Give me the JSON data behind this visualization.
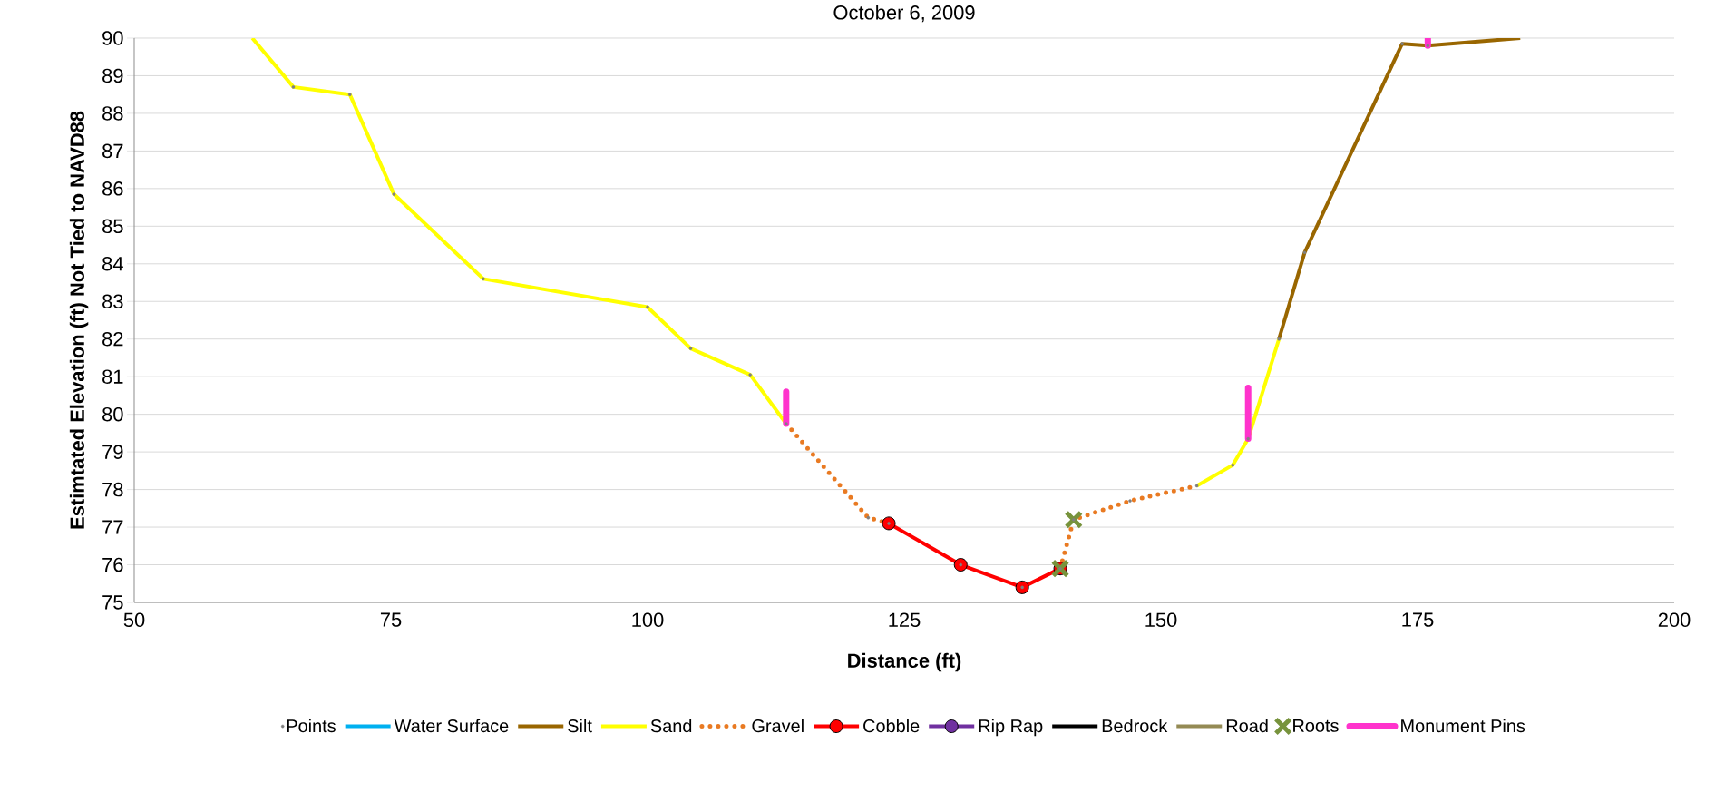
{
  "chart_data": {
    "type": "line",
    "title": "October 6, 2009",
    "xlabel": "Distance (ft)",
    "ylabel": "Estimtated Elevation (ft) Not Tied to NAVD88",
    "xlim": [
      50,
      200
    ],
    "xticks": [
      50,
      75,
      100,
      125,
      150,
      175,
      200
    ],
    "ylim": [
      75,
      90
    ],
    "yticks": [
      75,
      76,
      77,
      78,
      79,
      80,
      81,
      82,
      83,
      84,
      85,
      86,
      87,
      88,
      89,
      90
    ],
    "grid": "y",
    "legend": "bottom",
    "series": [
      {
        "name": "Points",
        "type": "scatter",
        "marker": "circle",
        "color": "#808080",
        "x": [
          65.5,
          71,
          75.3,
          84,
          100,
          104.2,
          110,
          113.5,
          121.5,
          123.5,
          130.5,
          136.5,
          140.2,
          141.5,
          147,
          153.5,
          157,
          158.5,
          161.5,
          164,
          173.5,
          176
        ],
        "values": [
          88.7,
          88.5,
          85.85,
          83.6,
          82.85,
          81.75,
          81.05,
          79.75,
          77.25,
          77.1,
          76.0,
          75.4,
          75.9,
          77.2,
          77.7,
          78.1,
          78.65,
          79.35,
          82.0,
          84.3,
          89.85,
          89.8
        ]
      },
      {
        "name": "Water Surface",
        "color": "#00b0f0",
        "marker": "none",
        "line_style": "solid"
      },
      {
        "name": "Silt",
        "color": "#996600",
        "marker": "none",
        "line_style": "solid",
        "x": [
          161.5,
          164,
          173.5,
          176,
          185
        ],
        "values": [
          82.0,
          84.3,
          89.85,
          89.8,
          90.0
        ]
      },
      {
        "name": "Sand",
        "color": "#ffff00",
        "marker": "none",
        "line_style": "solid",
        "x": [
          61.5,
          65.5,
          71,
          75.3,
          84,
          100,
          104.2,
          110,
          113.5,
          null,
          153.5,
          157,
          158.5,
          161.5
        ],
        "values": [
          90.0,
          88.7,
          88.5,
          85.85,
          83.6,
          82.85,
          81.75,
          81.05,
          79.75,
          null,
          78.1,
          78.65,
          79.35,
          82.0
        ]
      },
      {
        "name": "Gravel",
        "color": "#e97a22",
        "marker": "none",
        "line_style": "dotted",
        "x": [
          113.5,
          121.5,
          123.5,
          null,
          140.2,
          141.5,
          147,
          153.5
        ],
        "values": [
          79.75,
          77.25,
          77.1,
          null,
          75.9,
          77.2,
          77.7,
          78.1
        ]
      },
      {
        "name": "Cobble",
        "color": "#ff0000",
        "marker": "circle",
        "line_style": "solid",
        "x": [
          123.5,
          130.5,
          136.5,
          140.2
        ],
        "values": [
          77.1,
          76.0,
          75.4,
          75.9
        ]
      },
      {
        "name": "Rip Rap",
        "color": "#7030a0",
        "marker": "circle",
        "line_style": "solid"
      },
      {
        "name": "Bedrock",
        "color": "#000000",
        "marker": "none",
        "line_style": "solid"
      },
      {
        "name": "Road",
        "color": "#948a54",
        "marker": "none",
        "line_style": "solid"
      },
      {
        "name": "Roots",
        "type": "scatter",
        "color": "#77933c",
        "marker": "cross",
        "x": [
          140.2,
          141.5
        ],
        "values": [
          75.9,
          77.2
        ]
      },
      {
        "name": "Monument Pins",
        "color": "#ff33cc",
        "marker": "none",
        "line_style": "solid",
        "x": [
          113.5,
          113.5,
          null,
          158.5,
          158.5,
          null,
          176,
          176
        ],
        "values": [
          79.75,
          80.6,
          null,
          79.35,
          80.7,
          null,
          89.8,
          90.0
        ]
      }
    ]
  }
}
